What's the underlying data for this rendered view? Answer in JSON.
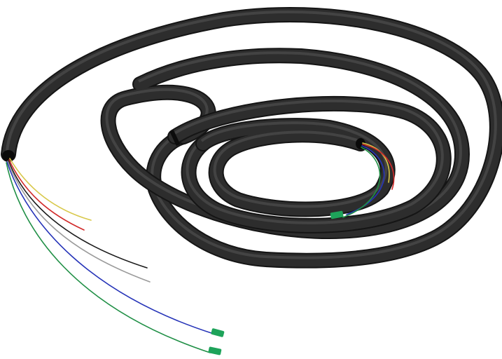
{
  "image": {
    "subject": "coiled-corrugated-conduit-with-fiber-cables",
    "background_color": "#ffffff"
  },
  "conduit": {
    "color": "#2a2a2a",
    "highlight_color": "#5a5a5a",
    "shadow_color": "#111111"
  },
  "wires": {
    "left_bundle": [
      {
        "name": "yellow-wire",
        "color": "#d8c84a"
      },
      {
        "name": "red-wire",
        "color": "#d12a2a"
      },
      {
        "name": "black-wire",
        "color": "#1a1a1a"
      },
      {
        "name": "gray-wire",
        "color": "#9a9a9a"
      },
      {
        "name": "blue-wire",
        "color": "#2533b8"
      },
      {
        "name": "green-wire",
        "color": "#1f8f45"
      }
    ],
    "right_bundle": [
      {
        "name": "yellow-wire",
        "color": "#d8c84a"
      },
      {
        "name": "red-wire",
        "color": "#d12a2a"
      },
      {
        "name": "blue-wire",
        "color": "#2533b8"
      },
      {
        "name": "green-wire",
        "color": "#1f8f45"
      }
    ],
    "connector_color": "#1ea35a"
  }
}
